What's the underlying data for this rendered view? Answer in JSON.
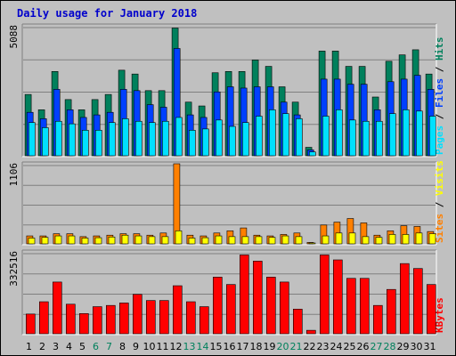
{
  "colors": {
    "background": "#c0c0c0",
    "title": "#0000cc",
    "hits": "#00805c",
    "files": "#0040ff",
    "pages": "#00e0ff",
    "visits": "#ffff00",
    "sites": "#ff8000",
    "kbytes": "#ff0000",
    "weekend_label": "#00805c",
    "weekday_label": "#000000"
  },
  "chart_data": {
    "type": "bar",
    "title": "Daily usage for January 2018",
    "categories": [
      "1",
      "2",
      "3",
      "4",
      "5",
      "6",
      "7",
      "8",
      "9",
      "10",
      "11",
      "12",
      "13",
      "14",
      "15",
      "16",
      "17",
      "18",
      "19",
      "20",
      "21",
      "22",
      "23",
      "24",
      "25",
      "26",
      "27",
      "28",
      "29",
      "30",
      "31"
    ],
    "weekend_days": [
      "6",
      "7",
      "13",
      "14",
      "20",
      "21",
      "27",
      "28"
    ],
    "panels": [
      {
        "ylabel_parts": [
          "Pages",
          "Files",
          "Hits"
        ],
        "ymax_label": "5088",
        "ylim": [
          0,
          5088
        ],
        "series": [
          {
            "name": "Hits",
            "values": [
              2400,
              1800,
              3300,
              2200,
              1800,
              2200,
              2400,
              3350,
              3200,
              2550,
              2550,
              5000,
              2100,
              1950,
              3250,
              3300,
              3300,
              3750,
              3500,
              2700,
              2100,
              330,
              4100,
              4100,
              3500,
              3500,
              2300,
              3700,
              3950,
              4150,
              3200
            ]
          },
          {
            "name": "Files",
            "values": [
              1700,
              1450,
              2600,
              1800,
              1500,
              1600,
              1700,
              2600,
              2550,
              2000,
              1900,
              4200,
              1600,
              1500,
              2500,
              2700,
              2650,
              2700,
              2700,
              2100,
              1600,
              230,
              3000,
              3000,
              2800,
              2800,
              1800,
              2900,
              3000,
              3150,
              2600
            ]
          },
          {
            "name": "Pages",
            "values": [
              1300,
              1100,
              1350,
              1250,
              1000,
              1000,
              1300,
              1450,
              1350,
              1300,
              1350,
              1500,
              1000,
              1050,
              1400,
              1150,
              1300,
              1550,
              1800,
              1650,
              1450,
              150,
              1550,
              1800,
              1400,
              1350,
              1350,
              1650,
              1800,
              1750,
              1550
            ]
          }
        ]
      },
      {
        "ylabel_parts": [
          "Sites",
          "Visits"
        ],
        "ymax_label": "1106",
        "ylim": [
          0,
          1106
        ],
        "series": [
          {
            "name": "Sites",
            "values": [
              110,
              110,
              140,
              140,
              100,
              110,
              120,
              140,
              140,
              120,
              150,
              1106,
              120,
              110,
              150,
              180,
              220,
              120,
              110,
              130,
              150,
              20,
              260,
              300,
              350,
              290,
              120,
              180,
              250,
              240,
              170
            ]
          },
          {
            "name": "Visits",
            "values": [
              80,
              90,
              110,
              110,
              80,
              85,
              95,
              120,
              110,
              100,
              100,
              180,
              80,
              85,
              110,
              100,
              100,
              100,
              90,
              110,
              100,
              10,
              110,
              150,
              150,
              100,
              90,
              130,
              130,
              150,
              140
            ]
          }
        ]
      },
      {
        "ylabel_parts": [
          "KBytes"
        ],
        "ymax_label": "332516",
        "ylim": [
          0,
          332516
        ],
        "series": [
          {
            "name": "KBytes",
            "values": [
              80000,
              130000,
              210000,
              120000,
              82000,
              110000,
              115000,
              125000,
              160000,
              135000,
              135000,
              195000,
              130000,
              110000,
              230000,
              200000,
              320000,
              295000,
              230000,
              210000,
              100000,
              14000,
              320000,
              300000,
              225000,
              225000,
              115000,
              180000,
              285000,
              265000,
              200000
            ]
          }
        ]
      }
    ]
  }
}
